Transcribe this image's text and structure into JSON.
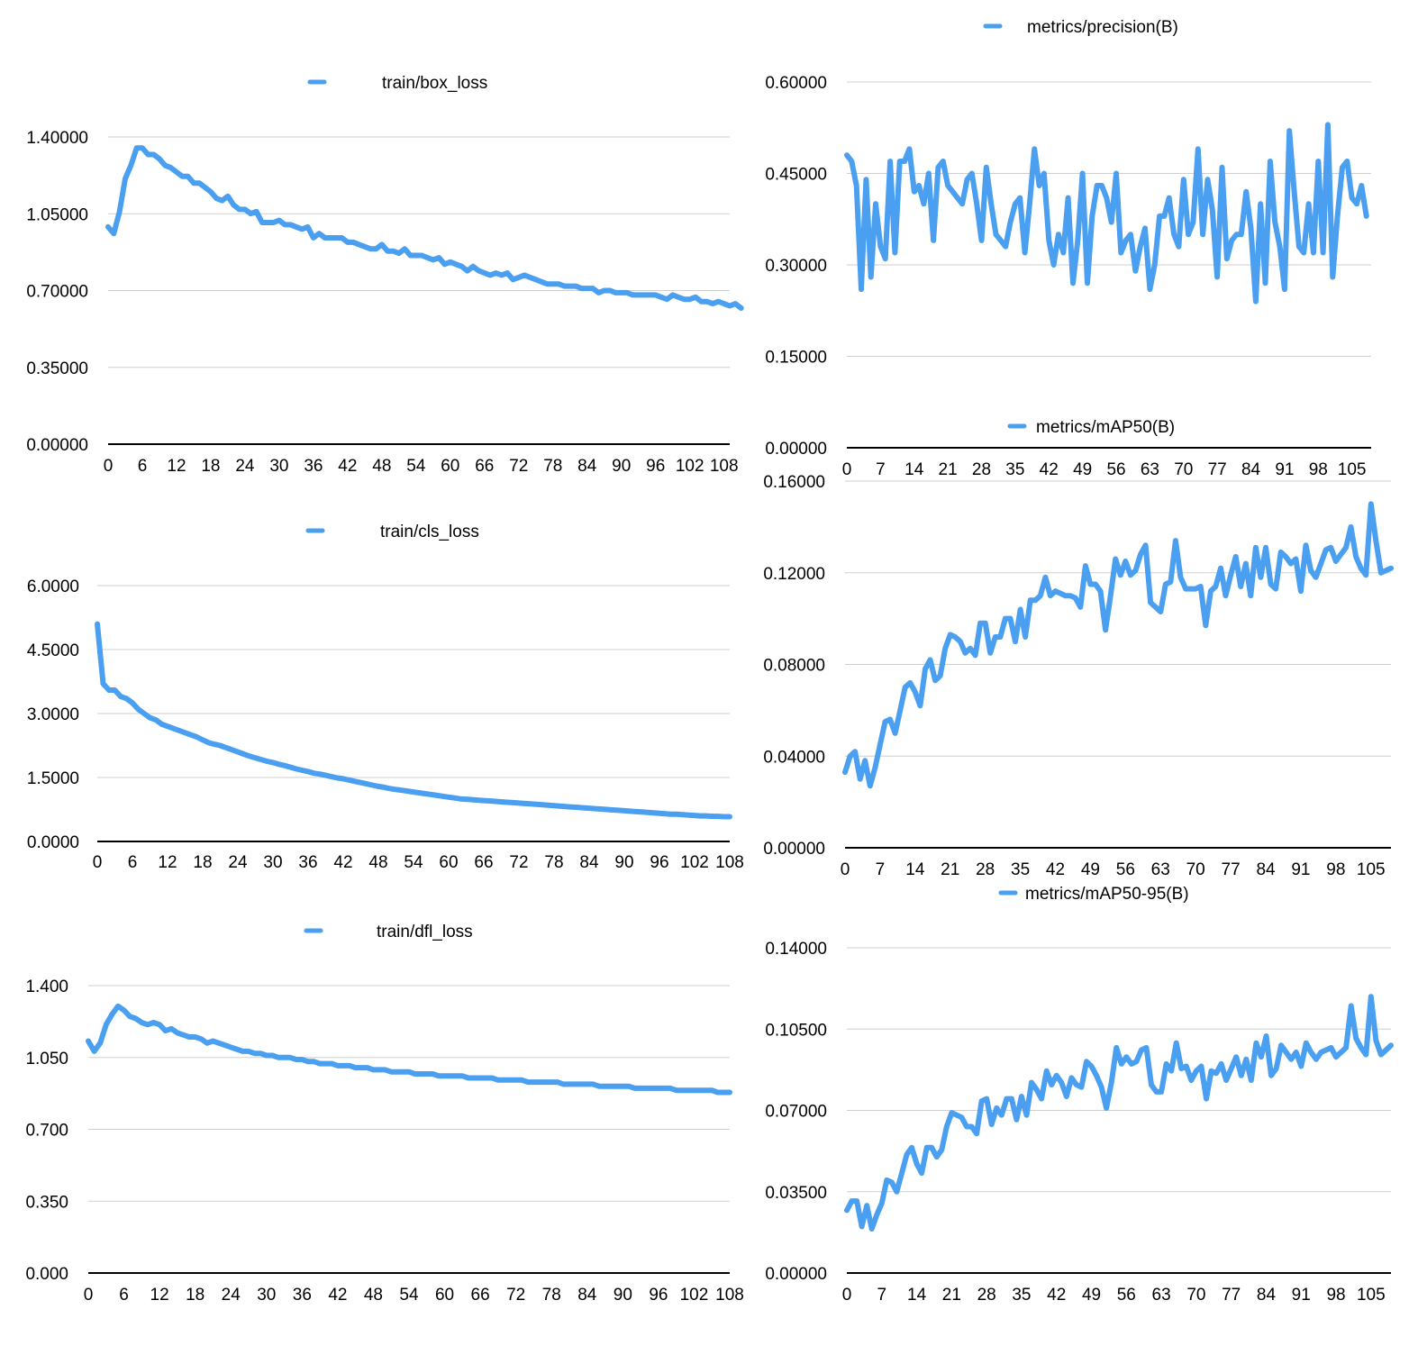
{
  "colors": {
    "series": "#4a9ff0",
    "grid": "#cfcfcf",
    "axis": "#000000"
  },
  "chart_data": [
    {
      "type": "line",
      "legend": "train/box_loss",
      "legend_placement": "top-center",
      "grid": true,
      "ylim": [
        0,
        1.4
      ],
      "yticks": [
        "0.00000",
        "0.35000",
        "0.70000",
        "1.05000",
        "1.40000"
      ],
      "xticks": [
        "0",
        "6",
        "12",
        "18",
        "24",
        "30",
        "36",
        "42",
        "48",
        "54",
        "60",
        "66",
        "72",
        "78",
        "84",
        "90",
        "96",
        "102",
        "108"
      ],
      "xlim": [
        0,
        109
      ],
      "series": [
        {
          "name": "train/box_loss",
          "x_start": 0,
          "values": [
            0.99,
            0.96,
            1.06,
            1.21,
            1.27,
            1.35,
            1.35,
            1.32,
            1.32,
            1.3,
            1.27,
            1.26,
            1.24,
            1.22,
            1.22,
            1.19,
            1.19,
            1.17,
            1.15,
            1.12,
            1.11,
            1.13,
            1.09,
            1.07,
            1.07,
            1.05,
            1.06,
            1.01,
            1.01,
            1.01,
            1.02,
            1.0,
            1.0,
            0.99,
            0.98,
            0.99,
            0.94,
            0.96,
            0.94,
            0.94,
            0.94,
            0.94,
            0.92,
            0.92,
            0.91,
            0.9,
            0.89,
            0.89,
            0.91,
            0.88,
            0.88,
            0.87,
            0.89,
            0.86,
            0.86,
            0.86,
            0.85,
            0.84,
            0.85,
            0.82,
            0.83,
            0.82,
            0.81,
            0.79,
            0.81,
            0.79,
            0.78,
            0.77,
            0.78,
            0.77,
            0.78,
            0.75,
            0.76,
            0.77,
            0.76,
            0.75,
            0.74,
            0.73,
            0.73,
            0.73,
            0.72,
            0.72,
            0.72,
            0.71,
            0.71,
            0.71,
            0.69,
            0.7,
            0.7,
            0.69,
            0.69,
            0.69,
            0.68,
            0.68,
            0.68,
            0.68,
            0.68,
            0.67,
            0.66,
            0.68,
            0.67,
            0.66,
            0.66,
            0.67,
            0.65,
            0.65,
            0.64,
            0.65,
            0.64,
            0.63,
            0.64,
            0.62
          ]
        }
      ]
    },
    {
      "type": "line",
      "legend": "train/cls_loss",
      "legend_placement": "top-center",
      "grid": true,
      "ylim": [
        0,
        6
      ],
      "yticks": [
        "0.0000",
        "1.5000",
        "3.0000",
        "4.5000",
        "6.0000"
      ],
      "xticks": [
        "0",
        "6",
        "12",
        "18",
        "24",
        "30",
        "36",
        "42",
        "48",
        "54",
        "60",
        "66",
        "72",
        "78",
        "84",
        "90",
        "96",
        "102",
        "108"
      ],
      "xlim": [
        0,
        108
      ],
      "series": [
        {
          "name": "train/cls_loss",
          "x_start": 0,
          "values": [
            5.1,
            3.7,
            3.55,
            3.55,
            3.4,
            3.35,
            3.25,
            3.1,
            3.0,
            2.9,
            2.85,
            2.75,
            2.7,
            2.65,
            2.6,
            2.55,
            2.5,
            2.45,
            2.38,
            2.32,
            2.28,
            2.25,
            2.2,
            2.15,
            2.1,
            2.05,
            2.0,
            1.96,
            1.92,
            1.88,
            1.85,
            1.81,
            1.78,
            1.74,
            1.7,
            1.67,
            1.64,
            1.6,
            1.58,
            1.55,
            1.52,
            1.49,
            1.47,
            1.44,
            1.41,
            1.38,
            1.35,
            1.32,
            1.29,
            1.27,
            1.24,
            1.22,
            1.2,
            1.18,
            1.16,
            1.14,
            1.12,
            1.1,
            1.08,
            1.06,
            1.04,
            1.02,
            1.0,
            0.99,
            0.98,
            0.97,
            0.96,
            0.95,
            0.94,
            0.93,
            0.92,
            0.91,
            0.9,
            0.89,
            0.88,
            0.87,
            0.86,
            0.85,
            0.84,
            0.83,
            0.82,
            0.81,
            0.8,
            0.79,
            0.78,
            0.77,
            0.76,
            0.75,
            0.74,
            0.73,
            0.72,
            0.71,
            0.7,
            0.69,
            0.68,
            0.67,
            0.66,
            0.65,
            0.64,
            0.64,
            0.63,
            0.62,
            0.61,
            0.6,
            0.6,
            0.59,
            0.59,
            0.58,
            0.58
          ]
        }
      ]
    },
    {
      "type": "line",
      "legend": "train/dfl_loss",
      "legend_placement": "top-center",
      "grid": true,
      "ylim": [
        0,
        1.4
      ],
      "yticks": [
        "0.000",
        "0.350",
        "0.700",
        "1.050",
        "1.400"
      ],
      "xticks": [
        "0",
        "6",
        "12",
        "18",
        "24",
        "30",
        "36",
        "42",
        "48",
        "54",
        "60",
        "66",
        "72",
        "78",
        "84",
        "90",
        "96",
        "102",
        "108"
      ],
      "xlim": [
        0,
        108
      ],
      "series": [
        {
          "name": "train/dfl_loss",
          "x_start": 0,
          "values": [
            1.13,
            1.08,
            1.12,
            1.21,
            1.26,
            1.3,
            1.28,
            1.25,
            1.24,
            1.22,
            1.21,
            1.22,
            1.21,
            1.18,
            1.19,
            1.17,
            1.16,
            1.15,
            1.15,
            1.14,
            1.12,
            1.13,
            1.12,
            1.11,
            1.1,
            1.09,
            1.08,
            1.08,
            1.07,
            1.07,
            1.06,
            1.06,
            1.05,
            1.05,
            1.05,
            1.04,
            1.04,
            1.03,
            1.03,
            1.02,
            1.02,
            1.02,
            1.01,
            1.01,
            1.01,
            1.0,
            1.0,
            1.0,
            0.99,
            0.99,
            0.99,
            0.98,
            0.98,
            0.98,
            0.98,
            0.97,
            0.97,
            0.97,
            0.97,
            0.96,
            0.96,
            0.96,
            0.96,
            0.96,
            0.95,
            0.95,
            0.95,
            0.95,
            0.95,
            0.94,
            0.94,
            0.94,
            0.94,
            0.94,
            0.93,
            0.93,
            0.93,
            0.93,
            0.93,
            0.93,
            0.92,
            0.92,
            0.92,
            0.92,
            0.92,
            0.92,
            0.91,
            0.91,
            0.91,
            0.91,
            0.91,
            0.91,
            0.9,
            0.9,
            0.9,
            0.9,
            0.9,
            0.9,
            0.9,
            0.89,
            0.89,
            0.89,
            0.89,
            0.89,
            0.89,
            0.89,
            0.88,
            0.88,
            0.88
          ]
        }
      ]
    },
    {
      "type": "line",
      "legend": "metrics/precision(B)",
      "legend_placement": "top-center",
      "grid": true,
      "ylim": [
        0,
        0.6
      ],
      "yticks": [
        "0.00000",
        "0.15000",
        "0.30000",
        "0.45000",
        "0.60000"
      ],
      "xticks": [
        "0",
        "7",
        "14",
        "21",
        "28",
        "35",
        "42",
        "49",
        "56",
        "63",
        "70",
        "77",
        "84",
        "91",
        "98",
        "105"
      ],
      "xlim": [
        0,
        109
      ],
      "series": [
        {
          "name": "metrics/precision(B)",
          "x_start": 0,
          "values": [
            0.48,
            0.47,
            0.43,
            0.26,
            0.44,
            0.28,
            0.4,
            0.33,
            0.31,
            0.47,
            0.32,
            0.47,
            0.47,
            0.49,
            0.42,
            0.43,
            0.4,
            0.45,
            0.34,
            0.46,
            0.47,
            0.43,
            0.42,
            0.41,
            0.4,
            0.44,
            0.45,
            0.4,
            0.34,
            0.46,
            0.4,
            0.35,
            0.34,
            0.33,
            0.37,
            0.4,
            0.41,
            0.32,
            0.4,
            0.49,
            0.43,
            0.45,
            0.34,
            0.3,
            0.35,
            0.32,
            0.41,
            0.27,
            0.34,
            0.45,
            0.27,
            0.38,
            0.43,
            0.43,
            0.41,
            0.37,
            0.45,
            0.32,
            0.34,
            0.35,
            0.29,
            0.33,
            0.36,
            0.26,
            0.3,
            0.38,
            0.38,
            0.41,
            0.35,
            0.33,
            0.44,
            0.35,
            0.37,
            0.49,
            0.35,
            0.44,
            0.39,
            0.28,
            0.46,
            0.31,
            0.34,
            0.35,
            0.35,
            0.42,
            0.36,
            0.24,
            0.4,
            0.27,
            0.47,
            0.37,
            0.33,
            0.26,
            0.52,
            0.42,
            0.33,
            0.32,
            0.4,
            0.32,
            0.47,
            0.32,
            0.53,
            0.28,
            0.38,
            0.46,
            0.47,
            0.41,
            0.4,
            0.43,
            0.38
          ]
        }
      ]
    },
    {
      "type": "line",
      "legend": "metrics/mAP50(B)",
      "legend_placement": "top-center",
      "grid": true,
      "ylim": [
        0,
        0.16
      ],
      "yticks": [
        "0.00000",
        "0.04000",
        "0.08000",
        "0.12000",
        "0.16000"
      ],
      "xticks": [
        "0",
        "7",
        "14",
        "21",
        "28",
        "35",
        "42",
        "49",
        "56",
        "63",
        "70",
        "77",
        "84",
        "91",
        "98",
        "105"
      ],
      "xlim": [
        0,
        109
      ],
      "series": [
        {
          "name": "metrics/mAP50(B)",
          "x_start": 0,
          "values": [
            0.033,
            0.04,
            0.042,
            0.03,
            0.038,
            0.027,
            0.035,
            0.045,
            0.055,
            0.056,
            0.05,
            0.06,
            0.07,
            0.072,
            0.068,
            0.062,
            0.078,
            0.082,
            0.073,
            0.075,
            0.087,
            0.093,
            0.092,
            0.09,
            0.085,
            0.087,
            0.084,
            0.098,
            0.098,
            0.085,
            0.092,
            0.092,
            0.1,
            0.1,
            0.09,
            0.104,
            0.092,
            0.108,
            0.108,
            0.11,
            0.118,
            0.11,
            0.112,
            0.111,
            0.11,
            0.11,
            0.109,
            0.105,
            0.123,
            0.115,
            0.115,
            0.112,
            0.095,
            0.11,
            0.126,
            0.119,
            0.125,
            0.119,
            0.121,
            0.128,
            0.132,
            0.107,
            0.105,
            0.103,
            0.115,
            0.116,
            0.134,
            0.118,
            0.113,
            0.113,
            0.113,
            0.114,
            0.097,
            0.112,
            0.114,
            0.122,
            0.11,
            0.119,
            0.127,
            0.114,
            0.124,
            0.11,
            0.131,
            0.118,
            0.131,
            0.115,
            0.113,
            0.129,
            0.127,
            0.124,
            0.126,
            0.112,
            0.132,
            0.121,
            0.118,
            0.124,
            0.13,
            0.131,
            0.125,
            0.128,
            0.131,
            0.14,
            0.127,
            0.122,
            0.119,
            0.15,
            0.134,
            0.12,
            0.121,
            0.122
          ]
        }
      ]
    },
    {
      "type": "line",
      "legend": "metrics/mAP50-95(B)",
      "legend_placement": "top-center",
      "grid": true,
      "ylim": [
        0,
        0.14
      ],
      "yticks": [
        "0.00000",
        "0.03500",
        "0.07000",
        "0.10500",
        "0.14000"
      ],
      "xticks": [
        "0",
        "7",
        "14",
        "21",
        "28",
        "35",
        "42",
        "49",
        "56",
        "63",
        "70",
        "77",
        "84",
        "91",
        "98",
        "105"
      ],
      "xlim": [
        0,
        109
      ],
      "series": [
        {
          "name": "metrics/mAP50-95(B)",
          "x_start": 0,
          "values": [
            0.027,
            0.031,
            0.031,
            0.02,
            0.029,
            0.019,
            0.025,
            0.03,
            0.04,
            0.039,
            0.035,
            0.043,
            0.051,
            0.054,
            0.047,
            0.043,
            0.054,
            0.054,
            0.05,
            0.053,
            0.063,
            0.069,
            0.068,
            0.067,
            0.063,
            0.063,
            0.06,
            0.074,
            0.075,
            0.064,
            0.071,
            0.068,
            0.075,
            0.075,
            0.066,
            0.076,
            0.068,
            0.082,
            0.079,
            0.075,
            0.087,
            0.081,
            0.085,
            0.082,
            0.076,
            0.084,
            0.081,
            0.08,
            0.091,
            0.089,
            0.085,
            0.08,
            0.071,
            0.082,
            0.097,
            0.09,
            0.093,
            0.09,
            0.091,
            0.096,
            0.097,
            0.081,
            0.078,
            0.078,
            0.09,
            0.087,
            0.099,
            0.088,
            0.089,
            0.083,
            0.087,
            0.089,
            0.075,
            0.087,
            0.086,
            0.09,
            0.083,
            0.088,
            0.093,
            0.085,
            0.092,
            0.083,
            0.099,
            0.093,
            0.102,
            0.085,
            0.088,
            0.098,
            0.095,
            0.092,
            0.095,
            0.089,
            0.099,
            0.095,
            0.092,
            0.095,
            0.096,
            0.097,
            0.093,
            0.095,
            0.097,
            0.115,
            0.101,
            0.097,
            0.094,
            0.119,
            0.1,
            0.094,
            0.096,
            0.098
          ]
        }
      ]
    }
  ]
}
